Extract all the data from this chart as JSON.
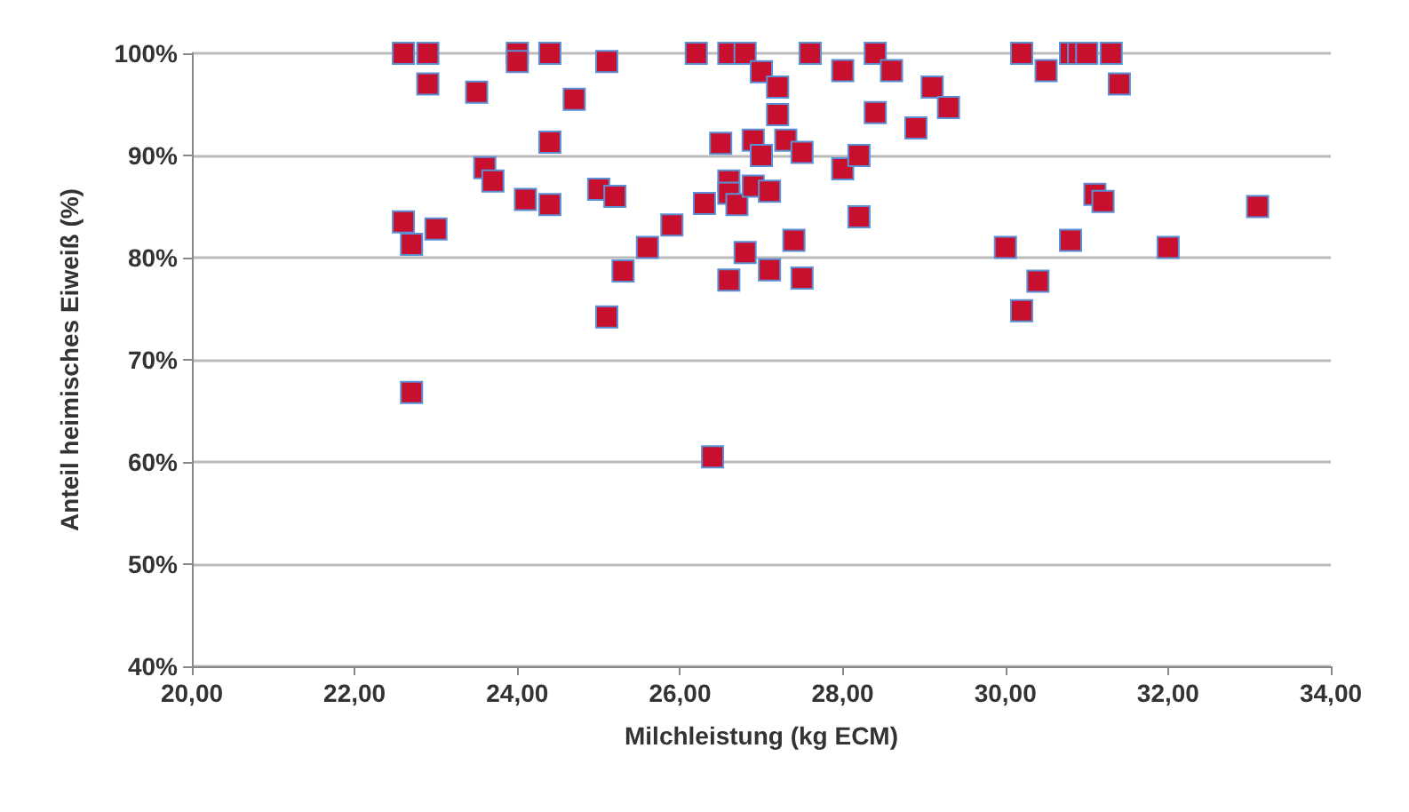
{
  "chart_data": {
    "type": "scatter",
    "xlabel": "Milchleistung (kg ECM)",
    "ylabel": "Anteil heimisches Eiweiß (%)",
    "marker": "square",
    "grid": "y",
    "xlim": [
      20,
      34
    ],
    "xticks": [
      {
        "value": 20,
        "label": "20,00"
      },
      {
        "value": 22,
        "label": "22,00"
      },
      {
        "value": 24,
        "label": "24,00"
      },
      {
        "value": 26,
        "label": "26,00"
      },
      {
        "value": 28,
        "label": "28,00"
      },
      {
        "value": 30,
        "label": "30,00"
      },
      {
        "value": 32,
        "label": "32,00"
      },
      {
        "value": 34,
        "label": "34,00"
      }
    ],
    "ylim": [
      40,
      100
    ],
    "yticks": [
      {
        "value": 40,
        "label": "40%"
      },
      {
        "value": 50,
        "label": "50%"
      },
      {
        "value": 60,
        "label": "60%"
      },
      {
        "value": 70,
        "label": "70%"
      },
      {
        "value": 80,
        "label": "80%"
      },
      {
        "value": 90,
        "label": "90%"
      },
      {
        "value": 100,
        "label": "100%"
      }
    ],
    "series": [
      {
        "color": "#c8102e",
        "x": [
          22.6,
          22.9,
          22.9,
          22.6,
          22.7,
          23.0,
          22.7,
          23.5,
          23.6,
          23.7,
          24.0,
          24.0,
          24.1,
          24.4,
          24.4,
          24.4,
          24.7,
          25.1,
          25.0,
          25.1,
          25.2,
          25.3,
          25.6,
          25.9,
          26.2,
          26.3,
          26.4,
          26.5,
          26.6,
          26.6,
          26.6,
          26.7,
          26.6,
          26.8,
          26.8,
          26.9,
          26.9,
          27.0,
          27.0,
          27.1,
          27.1,
          27.2,
          27.2,
          27.3,
          27.4,
          27.5,
          27.5,
          27.6,
          28.0,
          28.0,
          28.2,
          28.2,
          28.4,
          28.4,
          28.6,
          28.9,
          29.1,
          29.3,
          30.2,
          30.5,
          30.8,
          30.9,
          31.0,
          31.3,
          31.4,
          31.1,
          31.2,
          33.1,
          30.0,
          30.8,
          32.0,
          30.4,
          30.2
        ],
        "values": [
          100,
          100,
          97,
          83.5,
          81.3,
          82.8,
          66.8,
          96.2,
          88.8,
          87.5,
          100,
          99.2,
          85.7,
          100,
          91.3,
          85.2,
          95.5,
          99.2,
          86.7,
          74.2,
          86,
          78.7,
          81,
          83.2,
          100,
          85.3,
          60.5,
          91.2,
          100,
          87.5,
          86.3,
          85.2,
          77.8,
          100,
          80.5,
          91.5,
          87,
          98.2,
          90,
          86.5,
          78.8,
          96.7,
          94,
          91.5,
          81.7,
          90.3,
          78,
          100,
          98.3,
          88.7,
          90,
          84,
          94.2,
          100,
          98.3,
          92.7,
          96.7,
          94.7,
          100,
          98.3,
          100,
          100,
          100,
          100,
          97,
          86.2,
          85.5,
          85,
          81,
          81.7,
          81,
          77.7,
          74.8
        ]
      }
    ]
  }
}
